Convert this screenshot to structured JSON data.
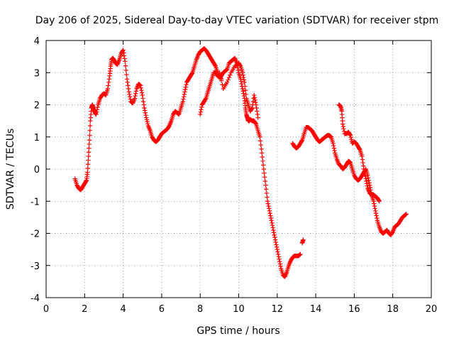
{
  "chart_data": {
    "type": "scatter",
    "title": "Day 206 of 2025, Sidereal Day-to-day VTEC variation (SDTVAR) for receiver stpm",
    "xlabel": "GPS time / hours",
    "ylabel": "SDTVAR / TECUs",
    "xlim": [
      0,
      20
    ],
    "ylim": [
      -4,
      4
    ],
    "xticks": [
      0,
      2,
      4,
      6,
      8,
      10,
      12,
      14,
      16,
      18,
      20
    ],
    "yticks": [
      -4,
      -3,
      -2,
      -1,
      0,
      1,
      2,
      3,
      4
    ],
    "grid": true,
    "marker": "plus",
    "color": "#ff0000",
    "series": [
      {
        "x": [
          1.5,
          1.6,
          1.7,
          1.8,
          1.9,
          2.0,
          2.1,
          2.15,
          2.2,
          2.25,
          2.3,
          2.35,
          2.4,
          2.45,
          2.5,
          2.55,
          2.6,
          2.7,
          2.8,
          2.9,
          3.0,
          3.1,
          3.2,
          3.3,
          3.35,
          3.4,
          3.45,
          3.5,
          3.55,
          3.6,
          3.7,
          3.8,
          3.9,
          4.0,
          4.1,
          4.2,
          4.3,
          4.4,
          4.5,
          4.6,
          4.7,
          4.8,
          4.9,
          5.0,
          5.1,
          5.2,
          5.3,
          5.4,
          5.5,
          5.6,
          5.7,
          5.8,
          5.9,
          6.0,
          6.1,
          6.2,
          6.3,
          6.4,
          6.5,
          6.6,
          6.7,
          6.8,
          6.9,
          7.0,
          7.1,
          7.2,
          7.3,
          7.4,
          7.5,
          7.6,
          7.7,
          7.8,
          7.9,
          8.0,
          8.1,
          8.2,
          8.3,
          8.4,
          8.5,
          8.6,
          8.7,
          8.8,
          8.9,
          9.0,
          9.1
        ],
        "y": [
          -0.3,
          -0.5,
          -0.6,
          -0.65,
          -0.55,
          -0.45,
          -0.35,
          -0.1,
          0.4,
          0.9,
          1.5,
          1.9,
          2.0,
          1.9,
          1.8,
          1.75,
          1.7,
          2.0,
          2.2,
          2.3,
          2.35,
          2.3,
          2.5,
          2.9,
          3.2,
          3.4,
          3.45,
          3.42,
          3.35,
          3.3,
          3.25,
          3.4,
          3.6,
          3.7,
          3.35,
          2.8,
          2.4,
          2.1,
          2.05,
          2.2,
          2.5,
          2.65,
          2.6,
          2.3,
          1.9,
          1.6,
          1.35,
          1.2,
          1.0,
          0.9,
          0.85,
          0.9,
          1.0,
          1.1,
          1.15,
          1.2,
          1.25,
          1.35,
          1.5,
          1.7,
          1.8,
          1.75,
          1.7,
          1.9,
          2.1,
          2.4,
          2.7,
          2.8,
          2.9,
          3.0,
          3.2,
          3.4,
          3.55,
          3.65,
          3.7,
          3.75,
          3.7,
          3.6,
          3.5,
          3.4,
          3.3,
          3.2,
          3.0,
          2.9,
          2.8
        ]
      },
      {
        "x": [
          8.0,
          8.1,
          8.2,
          8.3,
          8.4,
          8.5,
          8.6,
          8.7,
          8.8,
          8.9,
          9.0,
          9.1,
          9.2,
          9.3,
          9.4,
          9.5,
          9.6,
          9.7,
          9.8,
          9.9,
          10.0,
          10.1,
          10.2,
          10.3,
          10.35,
          10.4,
          10.45,
          10.5,
          10.55,
          10.6,
          10.7,
          10.8,
          10.9,
          11.0,
          11.1,
          11.2,
          11.3,
          11.4,
          11.5,
          11.6,
          11.7,
          11.8,
          11.9,
          12.0,
          12.1,
          12.2,
          12.3,
          12.4,
          12.5,
          12.6,
          12.7,
          12.8,
          12.9,
          13.0,
          13.1,
          13.2
        ],
        "y": [
          1.7,
          2.0,
          2.1,
          2.2,
          2.4,
          2.6,
          2.8,
          3.0,
          3.0,
          2.9,
          2.85,
          2.9,
          3.0,
          3.05,
          3.1,
          3.3,
          3.35,
          3.4,
          3.45,
          3.3,
          3.0,
          2.8,
          2.5,
          2.2,
          1.9,
          1.7,
          1.6,
          1.5,
          1.5,
          1.55,
          1.5,
          1.5,
          1.4,
          1.2,
          1.0,
          0.5,
          0.0,
          -0.5,
          -1.0,
          -1.3,
          -1.6,
          -1.9,
          -2.2,
          -2.5,
          -2.8,
          -3.1,
          -3.3,
          -3.35,
          -3.2,
          -3.0,
          -2.85,
          -2.75,
          -2.7,
          -2.7,
          -2.7,
          -2.65
        ]
      },
      {
        "x": [
          9.0,
          9.2,
          9.4,
          9.6,
          9.8,
          10.0,
          10.1,
          10.2,
          10.3,
          10.4,
          10.5,
          10.6,
          10.7,
          10.8,
          10.9,
          11.0
        ],
        "y": [
          3.0,
          2.5,
          2.7,
          3.0,
          3.2,
          3.3,
          3.2,
          3.0,
          2.7,
          2.2,
          2.0,
          1.8,
          1.9,
          2.3,
          2.0,
          1.6
        ]
      },
      {
        "x": [
          13.3,
          13.35
        ],
        "y": [
          -2.3,
          -2.2
        ]
      },
      {
        "x": [
          12.8,
          12.9,
          13.0,
          13.1,
          13.2,
          13.3,
          13.4,
          13.5,
          13.6,
          13.7,
          13.8,
          13.9,
          14.0,
          14.1,
          14.2,
          14.3,
          14.4,
          14.5,
          14.6,
          14.7,
          14.8,
          14.9,
          15.0,
          15.1,
          15.2,
          15.3,
          15.4,
          15.5,
          15.6,
          15.7,
          15.8,
          15.9,
          16.0,
          16.1,
          16.2,
          16.3,
          16.4,
          16.5,
          16.6,
          16.7,
          16.8,
          16.9,
          17.0,
          17.1,
          17.2,
          17.3,
          17.4,
          17.5,
          17.6,
          17.7,
          17.8,
          17.9,
          18.0,
          18.1,
          18.2,
          18.3,
          18.4,
          18.5,
          18.6,
          18.7
        ],
        "y": [
          0.8,
          0.7,
          0.65,
          0.7,
          0.8,
          0.9,
          1.1,
          1.3,
          1.3,
          1.25,
          1.2,
          1.1,
          1.0,
          0.9,
          0.85,
          0.9,
          0.95,
          1.0,
          1.05,
          1.05,
          1.0,
          0.8,
          0.5,
          0.3,
          0.15,
          0.1,
          0.0,
          0.05,
          0.15,
          0.25,
          0.2,
          0.0,
          -0.2,
          -0.3,
          -0.35,
          -0.3,
          -0.2,
          -0.1,
          0.0,
          -0.2,
          -0.5,
          -0.8,
          -1.0,
          -1.3,
          -1.6,
          -1.8,
          -1.95,
          -2.0,
          -1.95,
          -1.9,
          -2.0,
          -2.05,
          -1.95,
          -1.8,
          -1.75,
          -1.7,
          -1.6,
          -1.5,
          -1.45,
          -1.4
        ]
      },
      {
        "x": [
          15.2,
          15.3,
          15.35,
          15.4,
          15.5,
          15.6,
          15.7,
          15.8,
          15.9,
          16.0,
          16.1,
          16.2,
          16.3,
          16.4,
          16.5,
          16.6,
          16.7,
          16.8,
          16.9,
          17.0,
          17.1,
          17.2,
          17.3
        ],
        "y": [
          2.0,
          1.95,
          1.8,
          1.4,
          1.1,
          1.1,
          1.15,
          1.05,
          0.8,
          0.85,
          0.8,
          0.7,
          0.6,
          0.4,
          0.0,
          -0.3,
          -0.6,
          -0.75,
          -0.8,
          -0.8,
          -0.85,
          -0.9,
          -1.0
        ]
      }
    ]
  }
}
